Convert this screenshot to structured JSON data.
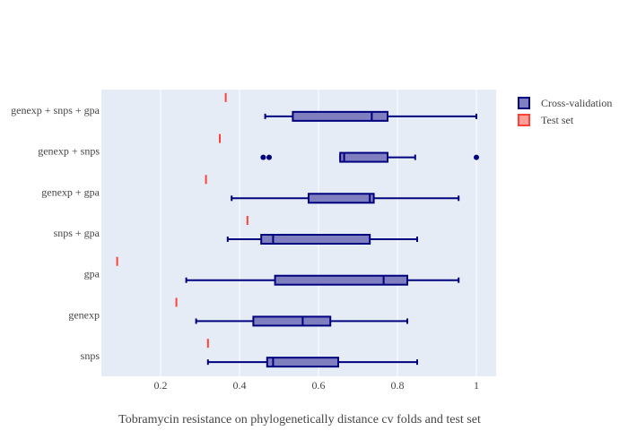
{
  "chart_data": {
    "type": "box",
    "orientation": "horizontal",
    "title": "Tobramycin resistance on phylogenetically distance cv folds and test set",
    "xlim": [
      0.05,
      1.05
    ],
    "x_ticks": [
      0.2,
      0.4,
      0.6,
      0.8,
      1
    ],
    "x_tick_labels": [
      "0.2",
      "0.4",
      "0.6",
      "0.8",
      "1"
    ],
    "grid": true,
    "legend_position": "top-right",
    "categories": [
      "snps",
      "genexp",
      "gpa",
      "snps + gpa",
      "genexp + gpa",
      "genexp + snps",
      "genexp + snps + gpa"
    ],
    "series": [
      {
        "name": "Cross-validation",
        "color": "#00007f",
        "fill": "#7f7fbf",
        "boxes": [
          {
            "category": "snps",
            "whisker_low": 0.32,
            "q1": 0.47,
            "median": 0.485,
            "q3": 0.65,
            "whisker_high": 0.85,
            "outliers": []
          },
          {
            "category": "genexp",
            "whisker_low": 0.29,
            "q1": 0.435,
            "median": 0.56,
            "q3": 0.63,
            "whisker_high": 0.825,
            "outliers": []
          },
          {
            "category": "gpa",
            "whisker_low": 0.265,
            "q1": 0.49,
            "median": 0.765,
            "q3": 0.825,
            "whisker_high": 0.955,
            "outliers": []
          },
          {
            "category": "snps + gpa",
            "whisker_low": 0.37,
            "q1": 0.455,
            "median": 0.485,
            "q3": 0.73,
            "whisker_high": 0.85,
            "outliers": []
          },
          {
            "category": "genexp + gpa",
            "whisker_low": 0.38,
            "q1": 0.575,
            "median": 0.73,
            "q3": 0.74,
            "whisker_high": 0.955,
            "outliers": []
          },
          {
            "category": "genexp + snps",
            "whisker_low": 0.655,
            "q1": 0.655,
            "median": 0.665,
            "q3": 0.775,
            "whisker_high": 0.845,
            "outliers": [
              0.46,
              0.475,
              1.0
            ]
          },
          {
            "category": "genexp + snps + gpa",
            "whisker_low": 0.465,
            "q1": 0.535,
            "median": 0.735,
            "q3": 0.775,
            "whisker_high": 1.0,
            "outliers": []
          }
        ]
      },
      {
        "name": "Test set",
        "color": "#ff4136",
        "fill": "#ff9f9a",
        "values": [
          {
            "category": "snps",
            "value": 0.32
          },
          {
            "category": "genexp",
            "value": 0.24
          },
          {
            "category": "gpa",
            "value": 0.09
          },
          {
            "category": "snps + gpa",
            "value": 0.42
          },
          {
            "category": "genexp + gpa",
            "value": 0.315
          },
          {
            "category": "genexp + snps",
            "value": 0.35
          },
          {
            "category": "genexp + snps + gpa",
            "value": 0.365
          }
        ]
      }
    ]
  }
}
